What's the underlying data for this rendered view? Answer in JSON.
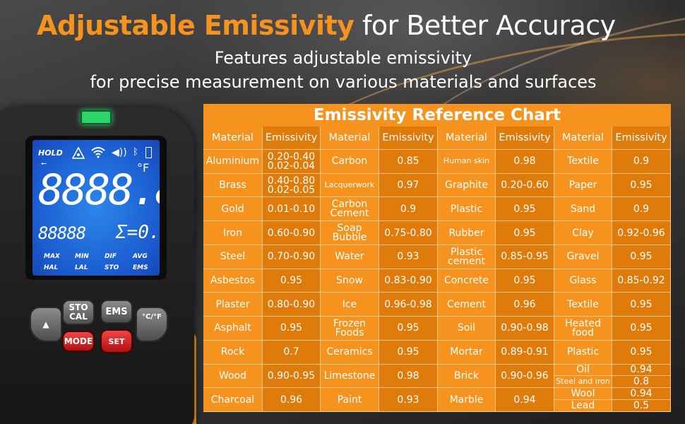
{
  "headline": {
    "accent": "Adjustable Emissivity",
    "rest": " for Better Accuracy"
  },
  "subtitle": {
    "line1": "Features adjustable emissivity",
    "line2": "for precise measurement on various materials and surfaces"
  },
  "device": {
    "lcd": {
      "hold": "HOLD",
      "usb": "⭠",
      "sound": "◀))",
      "bluetooth": "ᛒ",
      "unit": "°F",
      "main_reading": "8888.8",
      "sub_reading": "88888",
      "emissivity_reading": "Σ=0.95",
      "modes": [
        "MAX",
        "MIN",
        "DIF",
        "AVG",
        "HAL",
        "LAL",
        "STO",
        "EMS"
      ]
    },
    "buttons": {
      "sto_cal": "STO\nCAL",
      "ems": "EMS",
      "unit_toggle": "°C/°F",
      "mode": "MODE",
      "set": "SET",
      "up": "▲",
      "down": "▼"
    }
  },
  "chart": {
    "title": "Emissivity Reference Chart",
    "header": {
      "material": "Material",
      "emissivity": "Emissivity"
    },
    "groups": [
      {
        "rows": [
          {
            "material": "Aluminium",
            "emissivity": [
              "0.20-0.40",
              "0.02-0.04"
            ]
          },
          {
            "material": "Brass",
            "emissivity": [
              "0.40-0.80",
              "0.02-0.05"
            ]
          },
          {
            "material": "Gold",
            "emissivity": [
              "0.01-0.10"
            ]
          },
          {
            "material": "Iron",
            "emissivity": [
              "0.60-0.90"
            ]
          },
          {
            "material": "Steel",
            "emissivity": [
              "0.70-0.90"
            ]
          },
          {
            "material": "Asbestos",
            "emissivity": [
              "0.95"
            ]
          },
          {
            "material": "Plaster",
            "emissivity": [
              "0.80-0.90"
            ]
          },
          {
            "material": "Asphalt",
            "emissivity": [
              "0.95"
            ]
          },
          {
            "material": "Rock",
            "emissivity": [
              "0.7"
            ]
          },
          {
            "material": "Wood",
            "emissivity": [
              "0.90-0.95"
            ]
          },
          {
            "material": "Charcoal",
            "emissivity": [
              "0.96"
            ]
          }
        ]
      },
      {
        "rows": [
          {
            "material": "Carbon",
            "emissivity": [
              "0.85"
            ]
          },
          {
            "material": "Lacquerwork",
            "emissivity": [
              "0.97"
            ]
          },
          {
            "material": "Carbon Cement",
            "emissivity": [
              "0.9"
            ]
          },
          {
            "material": "Soap Bubble",
            "emissivity": [
              "0.75-0.80"
            ]
          },
          {
            "material": "Water",
            "emissivity": [
              "0.93"
            ]
          },
          {
            "material": "Snow",
            "emissivity": [
              "0.83-0.90"
            ]
          },
          {
            "material": "Ice",
            "emissivity": [
              "0.96-0.98"
            ]
          },
          {
            "material": "Frozen Foods",
            "emissivity": [
              "0.95"
            ]
          },
          {
            "material": "Ceramics",
            "emissivity": [
              "0.95"
            ]
          },
          {
            "material": "Limestone",
            "emissivity": [
              "0.98"
            ]
          },
          {
            "material": "Paint",
            "emissivity": [
              "0.93"
            ]
          }
        ]
      },
      {
        "rows": [
          {
            "material": "Human skin",
            "emissivity": [
              "0.98"
            ]
          },
          {
            "material": "Graphite",
            "emissivity": [
              "0.20-0.60"
            ]
          },
          {
            "material": "Plastic",
            "emissivity": [
              "0.95"
            ]
          },
          {
            "material": "Rubber",
            "emissivity": [
              "0.95"
            ]
          },
          {
            "material": "Plastic cement",
            "emissivity": [
              "0.85-0.95"
            ]
          },
          {
            "material": "Concrete",
            "emissivity": [
              "0.95"
            ]
          },
          {
            "material": "Cement",
            "emissivity": [
              "0.96"
            ]
          },
          {
            "material": "Soil",
            "emissivity": [
              "0.90-0.98"
            ]
          },
          {
            "material": "Mortar",
            "emissivity": [
              "0.89-0.91"
            ]
          },
          {
            "material": "Brick",
            "emissivity": [
              "0.90-0.96"
            ]
          },
          {
            "material": "Marble",
            "emissivity": [
              "0.94"
            ]
          }
        ]
      },
      {
        "rows": [
          {
            "material": "Textile",
            "emissivity": [
              "0.9"
            ]
          },
          {
            "material": "Paper",
            "emissivity": [
              "0.95"
            ]
          },
          {
            "material": "Sand",
            "emissivity": [
              "0.9"
            ]
          },
          {
            "material": "Clay",
            "emissivity": [
              "0.92-0.96"
            ]
          },
          {
            "material": "Gravel",
            "emissivity": [
              "0.95"
            ]
          },
          {
            "material": "Glass",
            "emissivity": [
              "0.85-0.92"
            ]
          },
          {
            "material": "Textile",
            "emissivity": [
              "0.95"
            ]
          },
          {
            "material": "Heated food",
            "emissivity": [
              "0.95"
            ]
          },
          {
            "material": "Plastic",
            "emissivity": [
              "0.95"
            ]
          }
        ],
        "last_block": [
          {
            "material": "Oil",
            "emissivity": "0.94"
          },
          {
            "material": "Steel and iron",
            "emissivity": "0.8"
          },
          {
            "material": "Wool",
            "emissivity": "0.94"
          },
          {
            "material": "Lead",
            "emissivity": "0.5"
          }
        ]
      }
    ]
  },
  "colors": {
    "accent": "#f6921e",
    "cell_dark": "#de7b0b",
    "lcd": "#1b5cd0",
    "laser_led": "#2bd56a"
  }
}
